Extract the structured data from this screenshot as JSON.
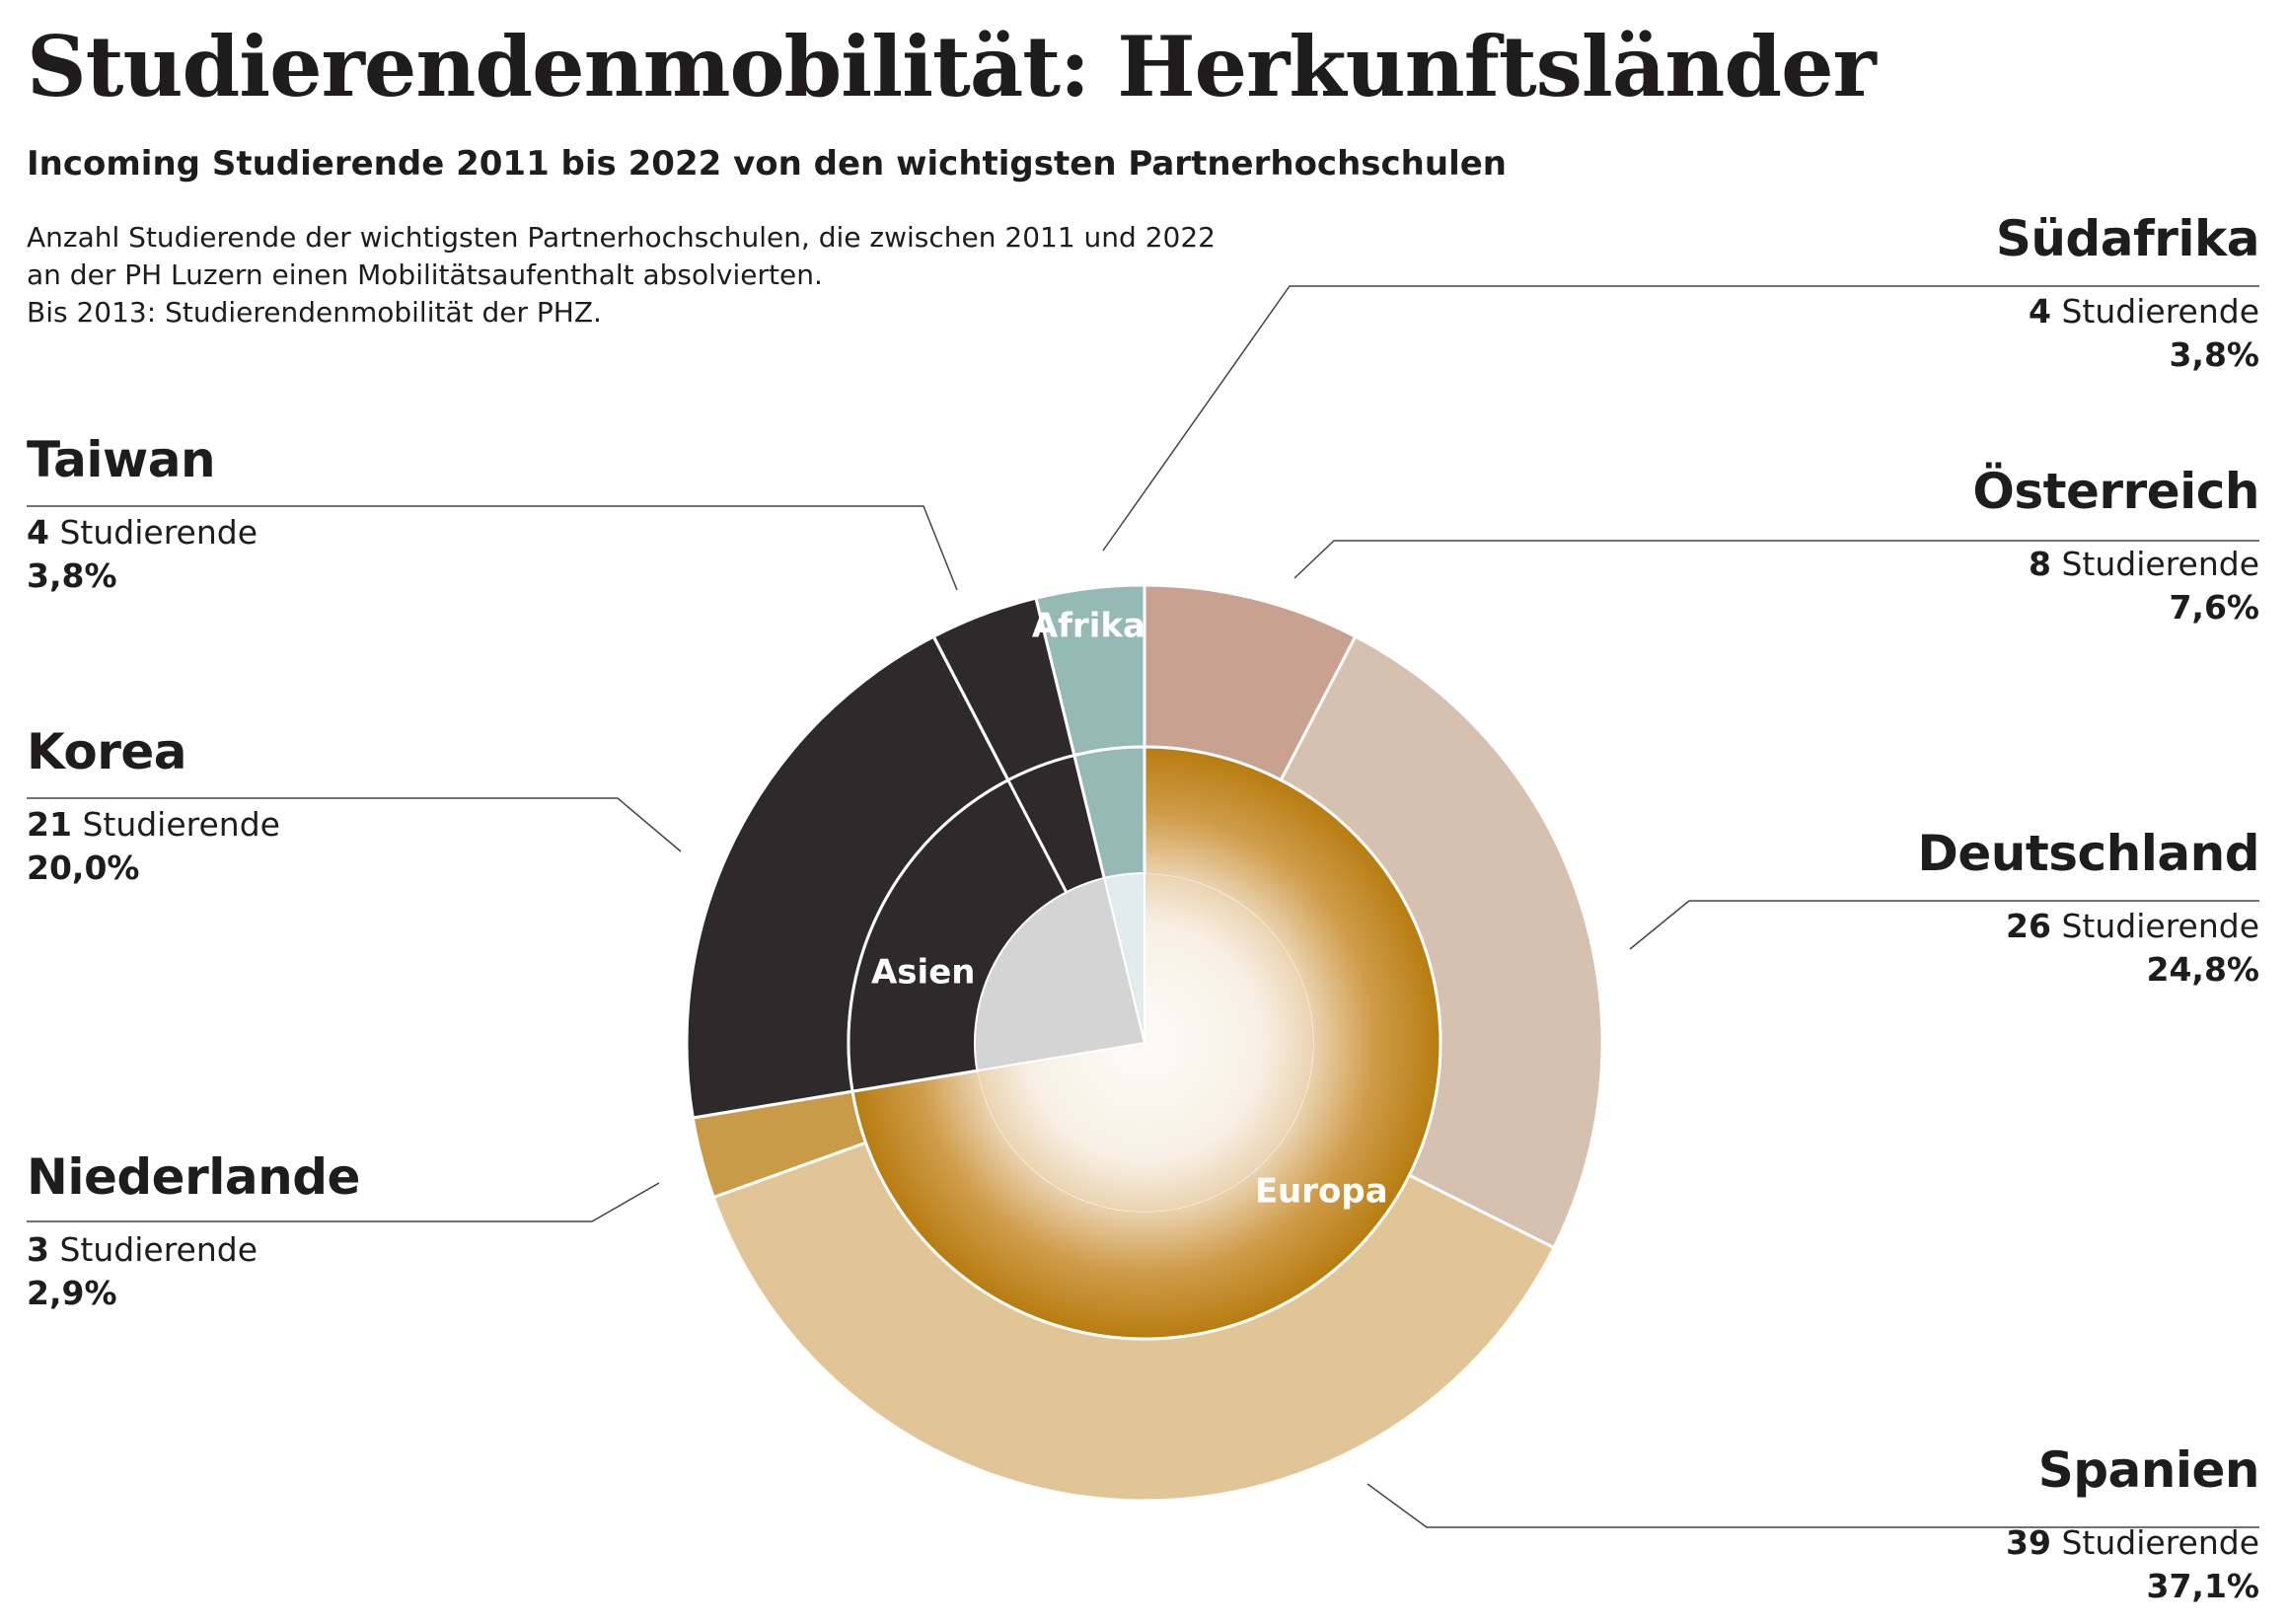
{
  "title": "Studierendenmobilität: Herkunftsländer",
  "subtitle": "Incoming Studierende 2011 bis 2022 von den wichtigsten Partnerhochschulen",
  "note": [
    "Anzahl Studierende der wichtigsten Partnerhochschulen, die zwischen 2011 und 2022",
    "an der PH Luzern einen Mobilitätsaufenthalt absolvierten.",
    "Bis 2013: Studierendenmobilität der PHZ."
  ],
  "unit_label": "Studierende",
  "chart_data": {
    "type": "pie",
    "subtype": "sunburst-donut",
    "total": 105,
    "inner_ring": [
      {
        "name": "Europa",
        "value": 76,
        "color": "#b87d12"
      },
      {
        "name": "Asien",
        "value": 25,
        "color": "#2e2a2b"
      },
      {
        "name": "Afrika",
        "value": 4,
        "color": "#95bab6"
      }
    ],
    "outer_ring": [
      {
        "name": "Österreich",
        "group": "Europa",
        "value": 8,
        "percent": "7,6%",
        "color": "#c9a190"
      },
      {
        "name": "Deutschland",
        "group": "Europa",
        "value": 26,
        "percent": "24,8%",
        "color": "#d6c1b0"
      },
      {
        "name": "Spanien",
        "group": "Europa",
        "value": 39,
        "percent": "37,1%",
        "color": "#e2c596"
      },
      {
        "name": "Niederlande",
        "group": "Europa",
        "value": 3,
        "percent": "2,9%",
        "color": "#c99a47"
      },
      {
        "name": "Korea",
        "group": "Asien",
        "value": 21,
        "percent": "20,0%",
        "color": "#2e2a2b"
      },
      {
        "name": "Taiwan",
        "group": "Asien",
        "value": 4,
        "percent": "3,8%",
        "color": "#2e2a2b"
      },
      {
        "name": "Südafrika",
        "group": "Afrika",
        "value": 4,
        "percent": "3,8%",
        "color": "#95bab6"
      }
    ]
  }
}
